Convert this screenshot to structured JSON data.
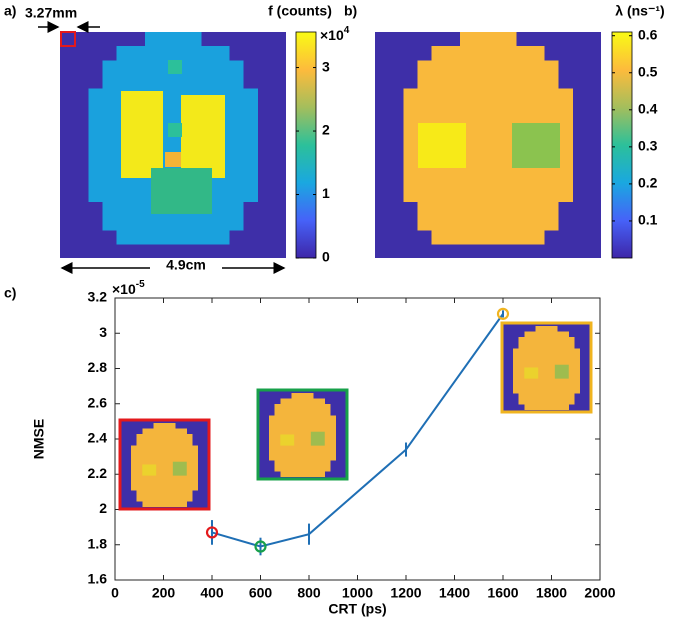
{
  "chart_data": [
    {
      "type": "image",
      "panel_label": "a)",
      "annotations": [
        "3.27mm",
        "4.9cm"
      ],
      "colorbar": {
        "title": "f (counts)",
        "multiplier": {
          "base": "×10",
          "exponent": "4"
        },
        "lim": [
          0,
          3.56
        ],
        "ticks": [
          0,
          1,
          2,
          3
        ],
        "colormap": [
          "#3e26a8",
          "#4662f8",
          "#1aa8e0",
          "#2cc09a",
          "#a4be5c",
          "#fdbb3c",
          "#f9fb15"
        ]
      }
    },
    {
      "type": "image",
      "panel_label": "b)",
      "colorbar": {
        "title": "λ (ns⁻¹)",
        "lim": [
          0,
          0.61
        ],
        "ticks": [
          0.1,
          0.2,
          0.3,
          0.4,
          0.5,
          0.6
        ],
        "colormap": [
          "#3e26a8",
          "#4662f8",
          "#1aa8e0",
          "#2cc09a",
          "#a4be5c",
          "#fdbb3c",
          "#f9fb15"
        ]
      }
    },
    {
      "type": "line",
      "panel_label": "c)",
      "x_label": "CRT (ps)",
      "y_label": "NMSE",
      "y_multiplier": {
        "base": "×10",
        "exponent": "-5"
      },
      "x": [
        400,
        600,
        800,
        1200,
        1600
      ],
      "values": [
        1.87,
        1.79,
        1.86,
        2.34,
        3.11
      ],
      "errors": [
        0.07,
        0.05,
        0.06,
        0.04,
        0.02
      ],
      "color": "#1f6fb5",
      "marker_colors": [
        "#e3191c",
        "#17a04a",
        null,
        null,
        "#f0b420"
      ],
      "xlim": [
        0,
        2000
      ],
      "xticks": [
        0,
        200,
        400,
        600,
        800,
        1000,
        1200,
        1400,
        1600,
        1800,
        2000
      ],
      "ylim": [
        1.6,
        3.2
      ],
      "yticks": [
        1.6,
        1.8,
        2,
        2.2,
        2.4,
        2.6,
        2.8,
        3,
        3.2
      ]
    }
  ]
}
